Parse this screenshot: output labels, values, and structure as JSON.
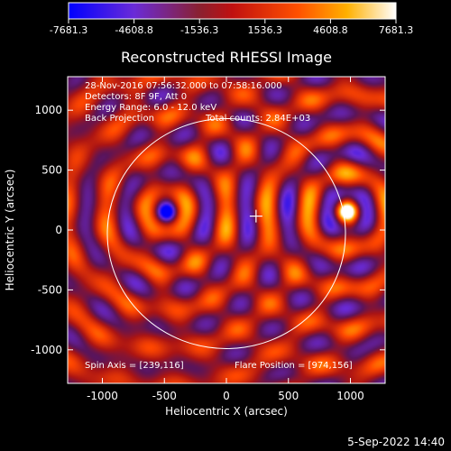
{
  "chart_data": {
    "type": "heatmap",
    "title": "Reconstructed RHESSI Image",
    "xlabel": "Heliocentric X (arcsec)",
    "ylabel": "Heliocentric Y (arcsec)",
    "xlim": [
      -1280,
      1280
    ],
    "ylim": [
      -1280,
      1280
    ],
    "xticks": [
      -1000,
      -500,
      0,
      500,
      1000
    ],
    "yticks": [
      -1000,
      -500,
      0,
      500,
      1000
    ],
    "colorbar": {
      "min": -7681.3,
      "max": 7681.3,
      "ticks": [
        "-7681.3",
        "-4608.8",
        "-1536.3",
        "1536.3",
        "4608.8",
        "7681.3"
      ]
    },
    "annotations": {
      "time_range": "28-Nov-2016 07:56:32.000 to 07:58:16.000",
      "detectors": "Detectors: 8F 9F, Att 0",
      "energy_range": "Energy Range: 6.0 - 12.0 keV",
      "method": "Back Projection",
      "total_counts": "Total counts: 2.84E+03",
      "spin_axis": "Spin Axis = [239,116]",
      "flare_position": "Flare Position = [974,156]"
    },
    "spin_axis": [
      239,
      116
    ],
    "flare_position": [
      974,
      156
    ],
    "solar_disk": {
      "center": [
        0,
        -30
      ],
      "radius": 960
    }
  },
  "footer": {
    "date": "5-Sep-2022 14:40"
  },
  "colors": {
    "background": "#000000",
    "text": "#ffffff"
  }
}
